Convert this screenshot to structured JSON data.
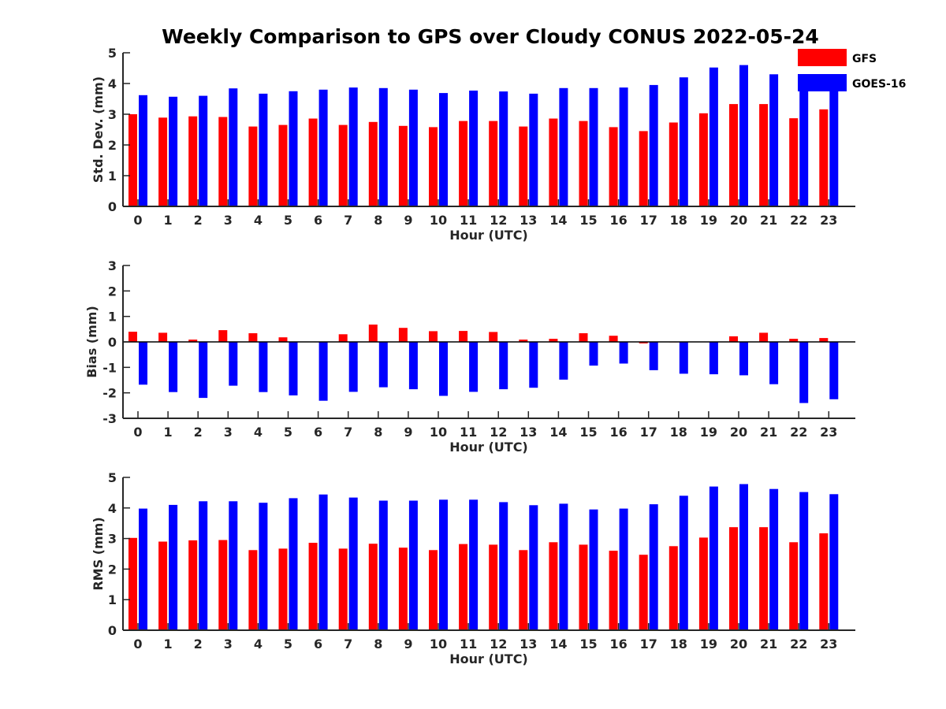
{
  "chart_data": {
    "title": "Weekly Comparison to GPS over Cloudy CONUS 2022-05-24",
    "type": "bar",
    "categories": [
      "0",
      "1",
      "2",
      "3",
      "4",
      "5",
      "6",
      "7",
      "8",
      "9",
      "10",
      "11",
      "12",
      "13",
      "14",
      "15",
      "16",
      "17",
      "18",
      "19",
      "20",
      "21",
      "22",
      "23"
    ],
    "legend": {
      "placement": "top-right",
      "entries": [
        {
          "name": "GFS",
          "color": "#ff0000"
        },
        {
          "name": "GOES-16",
          "color": "#0000ff"
        }
      ]
    },
    "panels": [
      {
        "id": "std",
        "xlabel": "Hour (UTC)",
        "ylabel": "Std. Dev. (mm)",
        "ylim": [
          0,
          5
        ],
        "yticks": [
          "0",
          "1",
          "2",
          "3",
          "4",
          "5"
        ],
        "series": [
          {
            "name": "GFS",
            "color": "#ff0000",
            "values": [
              3.0,
              2.89,
              2.93,
              2.91,
              2.6,
              2.65,
              2.86,
              2.65,
              2.75,
              2.62,
              2.58,
              2.78,
              2.78,
              2.6,
              2.86,
              2.78,
              2.58,
              2.45,
              2.73,
              3.03,
              3.33,
              3.33,
              2.87,
              3.16
            ]
          },
          {
            "name": "GOES-16",
            "color": "#0000ff",
            "values": [
              3.62,
              3.57,
              3.6,
              3.84,
              3.67,
              3.75,
              3.8,
              3.87,
              3.85,
              3.8,
              3.69,
              3.77,
              3.74,
              3.67,
              3.85,
              3.85,
              3.87,
              3.95,
              4.2,
              4.52,
              4.6,
              4.3,
              3.85,
              3.86
            ]
          }
        ]
      },
      {
        "id": "bias",
        "xlabel": "Hour (UTC)",
        "ylabel": "Bias (mm)",
        "ylim": [
          -3,
          3
        ],
        "yticks": [
          "-3",
          "-2",
          "-1",
          "0",
          "1",
          "2",
          "3"
        ],
        "series": [
          {
            "name": "GFS",
            "color": "#ff0000",
            "values": [
              0.4,
              0.36,
              0.09,
              0.46,
              0.34,
              0.18,
              0.01,
              0.3,
              0.68,
              0.55,
              0.42,
              0.43,
              0.39,
              0.09,
              0.12,
              0.34,
              0.24,
              -0.06,
              -0.02,
              0.0,
              0.22,
              0.36,
              0.12,
              0.15
            ]
          },
          {
            "name": "GOES-16",
            "color": "#0000ff",
            "values": [
              -1.68,
              -1.97,
              -2.2,
              -1.72,
              -1.97,
              -2.1,
              -2.31,
              -1.96,
              -1.78,
              -1.86,
              -2.12,
              -1.96,
              -1.86,
              -1.8,
              -1.48,
              -0.93,
              -0.85,
              -1.11,
              -1.25,
              -1.27,
              -1.31,
              -1.66,
              -2.4,
              -2.25
            ]
          }
        ]
      },
      {
        "id": "rms",
        "xlabel": "Hour (UTC)",
        "ylabel": "RMS (mm)",
        "ylim": [
          0,
          5
        ],
        "yticks": [
          "0",
          "1",
          "2",
          "3",
          "4",
          "5"
        ],
        "series": [
          {
            "name": "GFS",
            "color": "#ff0000",
            "values": [
              3.02,
              2.9,
              2.94,
              2.95,
              2.62,
              2.67,
              2.86,
              2.67,
              2.83,
              2.7,
              2.62,
              2.82,
              2.8,
              2.62,
              2.88,
              2.8,
              2.6,
              2.47,
              2.75,
              3.03,
              3.37,
              3.37,
              2.88,
              3.17
            ]
          },
          {
            "name": "GOES-16",
            "color": "#0000ff",
            "values": [
              3.98,
              4.1,
              4.22,
              4.22,
              4.17,
              4.32,
              4.44,
              4.34,
              4.24,
              4.24,
              4.27,
              4.27,
              4.19,
              4.09,
              4.14,
              3.95,
              3.98,
              4.12,
              4.4,
              4.7,
              4.78,
              4.62,
              4.52,
              4.45
            ]
          }
        ]
      }
    ]
  }
}
